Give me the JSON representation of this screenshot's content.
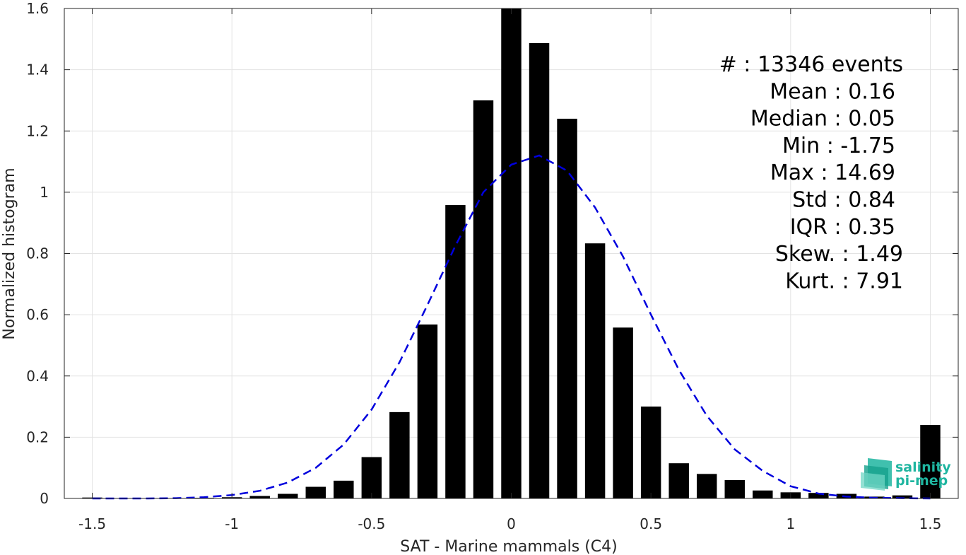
{
  "chart_data": {
    "type": "bar",
    "xlabel": "SAT - Marine mammals (C4)",
    "ylabel": "Normalized histogram",
    "xlim": [
      -1.6,
      1.6
    ],
    "ylim": [
      0,
      1.6
    ],
    "xticks": [
      -1.5,
      -1,
      -0.5,
      0,
      0.5,
      1,
      1.5
    ],
    "xtick_labels": [
      "-1.5",
      "-1",
      "-0.5",
      "0",
      "0.5",
      "1",
      "1.5"
    ],
    "yticks": [
      0,
      0.2,
      0.4,
      0.6,
      0.8,
      1,
      1.2,
      1.4,
      1.6
    ],
    "ytick_labels": [
      "0",
      "0.2",
      "0.4",
      "0.6",
      "0.8",
      "1",
      "1.2",
      "1.4",
      "1.6"
    ],
    "grid": true,
    "bar_color": "#000000",
    "curve_color": "#0000dd",
    "bars": {
      "x": [
        -1.5,
        -1.4,
        -1.3,
        -1.2,
        -1.1,
        -1.0,
        -0.9,
        -0.8,
        -0.7,
        -0.6,
        -0.5,
        -0.4,
        -0.3,
        -0.2,
        -0.1,
        0.0,
        0.1,
        0.2,
        0.3,
        0.4,
        0.5,
        0.6,
        0.7,
        0.8,
        0.9,
        1.0,
        1.1,
        1.2,
        1.3,
        1.4,
        1.5
      ],
      "values": [
        0.003,
        0.001,
        0.001,
        0.001,
        0.002,
        0.004,
        0.008,
        0.015,
        0.038,
        0.058,
        0.135,
        0.282,
        0.568,
        0.958,
        1.3,
        1.6,
        1.487,
        1.24,
        0.833,
        0.558,
        0.3,
        0.115,
        0.08,
        0.06,
        0.026,
        0.02,
        0.018,
        0.015,
        0.006,
        0.01,
        0.24
      ]
    },
    "gaussian_fit": {
      "mean": 0.1,
      "std": 0.355,
      "style": "dashed",
      "x": [
        -1.5,
        -1.4,
        -1.3,
        -1.2,
        -1.1,
        -1.0,
        -0.9,
        -0.8,
        -0.7,
        -0.6,
        -0.5,
        -0.4,
        -0.3,
        -0.2,
        -0.1,
        0.0,
        0.1,
        0.2,
        0.3,
        0.4,
        0.5,
        0.6,
        0.7,
        0.8,
        0.9,
        1.0,
        1.1,
        1.2,
        1.3,
        1.4,
        1.5
      ],
      "values": [
        0.0,
        0.0,
        0.0,
        0.001,
        0.004,
        0.011,
        0.025,
        0.052,
        0.1,
        0.176,
        0.29,
        0.445,
        0.632,
        0.825,
        1.0,
        1.09,
        1.12,
        1.07,
        0.95,
        0.79,
        0.6,
        0.42,
        0.27,
        0.16,
        0.09,
        0.04,
        0.016,
        0.006,
        0.002,
        0.001,
        0.0
      ]
    }
  },
  "stats": [
    {
      "label": "#  : 13346 events",
      "x_end": 1278
    },
    {
      "label": "Mean : 0.16",
      "x_end": 1267
    },
    {
      "label": "Median : 0.05",
      "x_end": 1267
    },
    {
      "label": "Min : -1.75",
      "x_end": 1267
    },
    {
      "label": "Max : 14.69",
      "x_end": 1267
    },
    {
      "label": "Std : 0.84",
      "x_end": 1267
    },
    {
      "label": "IQR : 0.35",
      "x_end": 1267
    },
    {
      "label": "Skew. : 1.49",
      "x_end": 1278
    },
    {
      "label": "Kurt. : 7.91",
      "x_end": 1278
    }
  ],
  "logo": {
    "line1": "salinity",
    "line2": "pi-mep",
    "color": "#1fb5a0"
  }
}
